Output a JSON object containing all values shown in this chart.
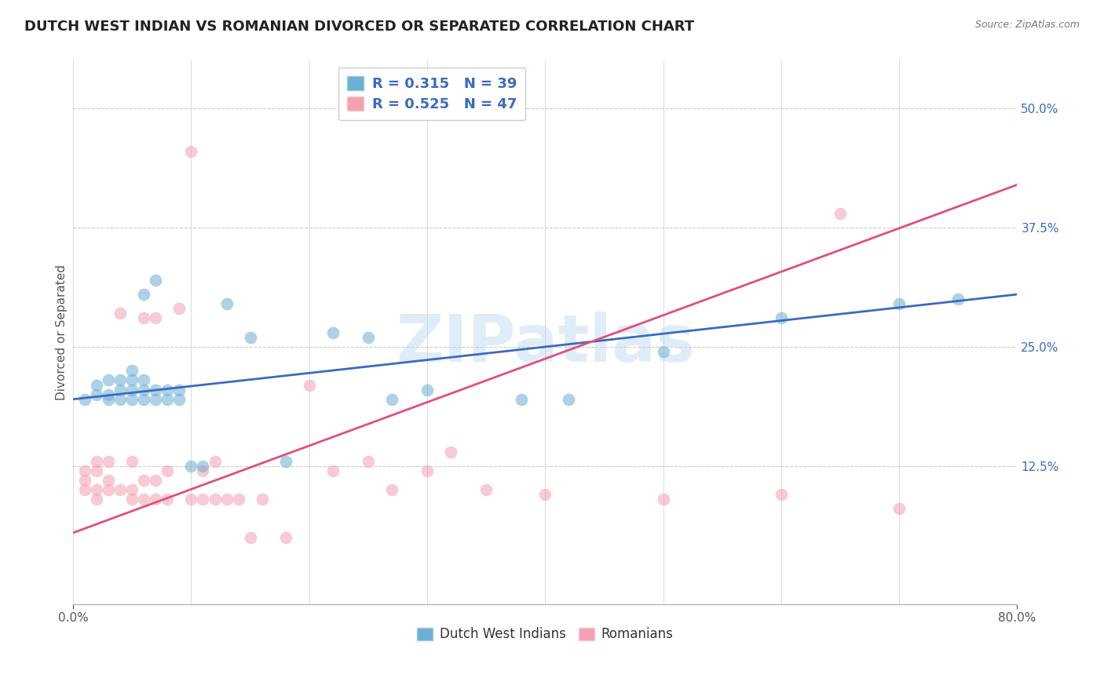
{
  "title": "DUTCH WEST INDIAN VS ROMANIAN DIVORCED OR SEPARATED CORRELATION CHART",
  "source": "Source: ZipAtlas.com",
  "ylabel": "Divorced or Separated",
  "legend_entries": [
    {
      "label_r": "R = ",
      "val_r": "0.315",
      "label_n": "  N = ",
      "val_n": "39",
      "color": "#6baed6"
    },
    {
      "label_r": "R = ",
      "val_r": "0.525",
      "label_n": "  N = ",
      "val_n": "47",
      "color": "#f4a0b0"
    }
  ],
  "xlim": [
    0.0,
    0.8
  ],
  "ylim": [
    -0.02,
    0.55
  ],
  "ytick_vals": [
    0.125,
    0.25,
    0.375,
    0.5
  ],
  "ytick_labels": [
    "12.5%",
    "25.0%",
    "37.5%",
    "50.0%"
  ],
  "grid_color": "#cccccc",
  "background_color": "#ffffff",
  "watermark": "ZIPatlas",
  "watermark_color": "#b8d8f0",
  "blue_scatter_x": [
    0.01,
    0.02,
    0.02,
    0.03,
    0.03,
    0.03,
    0.04,
    0.04,
    0.04,
    0.05,
    0.05,
    0.05,
    0.05,
    0.06,
    0.06,
    0.06,
    0.06,
    0.07,
    0.07,
    0.07,
    0.08,
    0.08,
    0.09,
    0.09,
    0.1,
    0.11,
    0.13,
    0.15,
    0.18,
    0.22,
    0.25,
    0.27,
    0.3,
    0.38,
    0.42,
    0.5,
    0.6,
    0.7,
    0.75
  ],
  "blue_scatter_y": [
    0.195,
    0.2,
    0.21,
    0.195,
    0.2,
    0.215,
    0.195,
    0.205,
    0.215,
    0.195,
    0.205,
    0.215,
    0.225,
    0.195,
    0.205,
    0.215,
    0.305,
    0.195,
    0.205,
    0.32,
    0.195,
    0.205,
    0.195,
    0.205,
    0.125,
    0.125,
    0.295,
    0.26,
    0.13,
    0.265,
    0.26,
    0.195,
    0.205,
    0.195,
    0.195,
    0.245,
    0.28,
    0.295,
    0.3
  ],
  "pink_scatter_x": [
    0.01,
    0.01,
    0.01,
    0.02,
    0.02,
    0.02,
    0.02,
    0.03,
    0.03,
    0.03,
    0.04,
    0.04,
    0.05,
    0.05,
    0.05,
    0.06,
    0.06,
    0.06,
    0.07,
    0.07,
    0.07,
    0.08,
    0.08,
    0.09,
    0.1,
    0.1,
    0.11,
    0.11,
    0.12,
    0.12,
    0.13,
    0.14,
    0.15,
    0.16,
    0.18,
    0.2,
    0.22,
    0.25,
    0.27,
    0.3,
    0.32,
    0.35,
    0.4,
    0.5,
    0.6,
    0.65,
    0.7
  ],
  "pink_scatter_y": [
    0.1,
    0.11,
    0.12,
    0.09,
    0.1,
    0.12,
    0.13,
    0.1,
    0.11,
    0.13,
    0.1,
    0.285,
    0.09,
    0.1,
    0.13,
    0.09,
    0.11,
    0.28,
    0.09,
    0.11,
    0.28,
    0.09,
    0.12,
    0.29,
    0.09,
    0.455,
    0.09,
    0.12,
    0.09,
    0.13,
    0.09,
    0.09,
    0.05,
    0.09,
    0.05,
    0.21,
    0.12,
    0.13,
    0.1,
    0.12,
    0.14,
    0.1,
    0.095,
    0.09,
    0.095,
    0.39,
    0.08
  ],
  "blue_line_x0": 0.0,
  "blue_line_x1": 0.8,
  "blue_line_y0": 0.195,
  "blue_line_y1": 0.305,
  "pink_line_x0": 0.0,
  "pink_line_x1": 0.8,
  "pink_line_y0": 0.055,
  "pink_line_y1": 0.42,
  "blue_color": "#6baed6",
  "blue_edge_color": "#9ecae1",
  "pink_color": "#f4a0b0",
  "pink_edge_color": "#fcc5cf",
  "blue_line_color": "#3a6bbf",
  "pink_line_color": "#e0507a",
  "scatter_size": 120,
  "scatter_alpha": 0.55,
  "title_fontsize": 13,
  "axis_label_fontsize": 11,
  "tick_fontsize": 11,
  "legend_fontsize": 13,
  "source_fontsize": 9
}
